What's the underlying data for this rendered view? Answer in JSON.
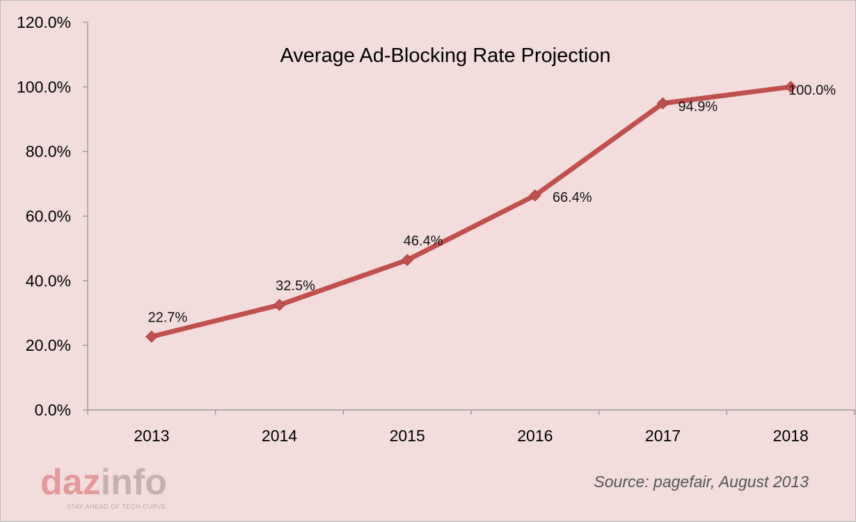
{
  "chart_data": {
    "type": "line",
    "title": "Average Ad-Blocking Rate Projection",
    "categories": [
      "2013",
      "2014",
      "2015",
      "2016",
      "2017",
      "2018"
    ],
    "series": [
      {
        "values": [
          22.7,
          32.5,
          46.4,
          66.4,
          94.9,
          100.0
        ],
        "labels": [
          "22.7%",
          "32.5%",
          "46.4%",
          "66.4%",
          "94.9%",
          "100.0%"
        ],
        "color": "#c0504d"
      }
    ],
    "yticks": [
      "0.0%",
      "20.0%",
      "40.0%",
      "60.0%",
      "80.0%",
      "100.0%",
      "120.0%"
    ],
    "ylim": [
      0,
      120
    ],
    "grid": false,
    "marker": "diamond"
  },
  "source": "Source: pagefair, August 2013",
  "logo": {
    "part1": "daz",
    "part2": "info",
    "tagline": "STAY AHEAD OF TECH CURVE",
    "color1": "#e39a9a",
    "color2": "#c8b0b0"
  }
}
